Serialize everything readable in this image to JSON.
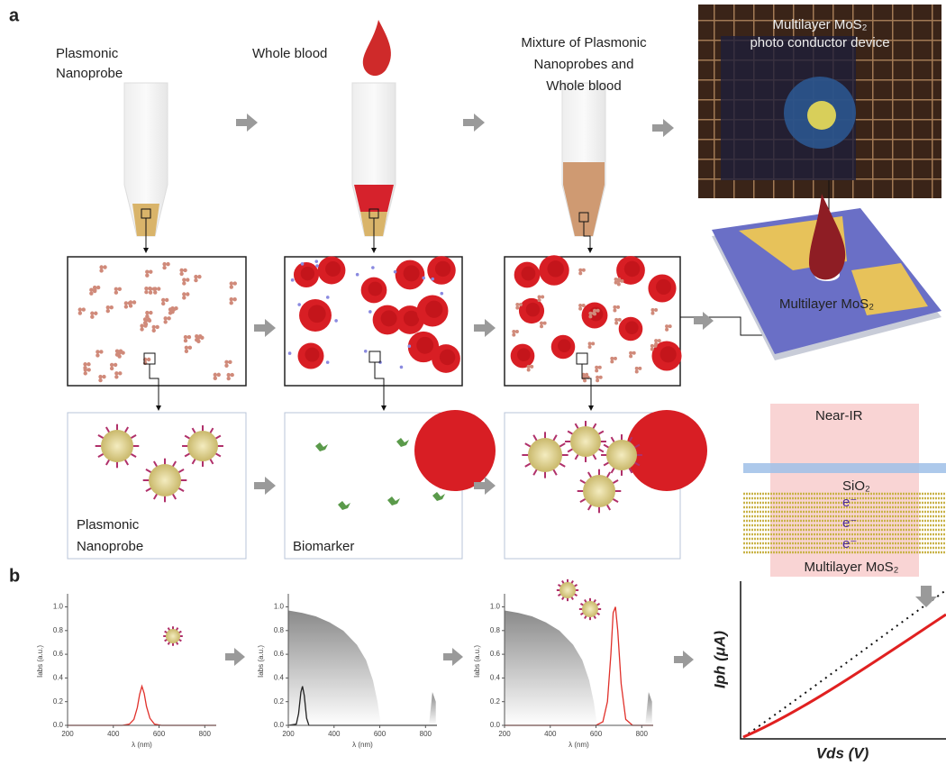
{
  "figure": {
    "panel_a": {
      "label": "a",
      "steps": [
        {
          "lines": [
            "Plasmonic",
            "Nanoprobe"
          ]
        },
        {
          "lines": [
            "Whole blood"
          ]
        },
        {
          "lines": [
            "Mixture of Plasmonic",
            "Nanoprobes and",
            "Whole blood"
          ]
        }
      ],
      "photo": {
        "lines": [
          "Multilayer MoS₂",
          "photo conductor device"
        ]
      },
      "device_label": "Multilayer MoS₂",
      "zoom_labels": [
        {
          "lines": [
            "Plasmonic",
            "Nanoprobe"
          ]
        },
        {
          "lines": [
            "Biomarker"
          ]
        }
      ],
      "stack": {
        "light": "Near-IR",
        "oxide": "SiO₂",
        "electrons": [
          "e⁻",
          "e⁻",
          "e⁻"
        ],
        "channel": "Multilayer MoS₂"
      }
    },
    "panel_b": {
      "label": "b",
      "iv": {
        "ylabel": "Iph (μA)",
        "xlabel": "Vds (V)"
      }
    }
  },
  "chart_data": [
    {
      "type": "line",
      "ylabel": "Iabs (a.u.)",
      "xlabel": "λ (nm)",
      "xlim": [
        200,
        850
      ],
      "ylim": [
        0,
        1.08
      ],
      "xticks": [
        200,
        400,
        600,
        800
      ],
      "yticks": [
        {
          "value": 0,
          "label": "0.0"
        },
        0.2,
        0.4,
        0.6,
        0.8,
        {
          "value": 1,
          "label": "1.0"
        }
      ],
      "series": [
        {
          "color": "#e0302a",
          "x": [
            200,
            440,
            470,
            490,
            505,
            515,
            525,
            535,
            545,
            560,
            580,
            610,
            850
          ],
          "values": [
            0,
            0,
            0.01,
            0.05,
            0.15,
            0.26,
            0.33,
            0.27,
            0.16,
            0.06,
            0.01,
            0,
            0
          ]
        }
      ]
    },
    {
      "type": "line",
      "ylabel": "Iabs (a.u.)",
      "xlabel": "λ (nm)",
      "xlim": [
        200,
        850
      ],
      "ylim": [
        0,
        1.08
      ],
      "xticks": [
        200,
        400,
        600,
        800
      ],
      "yticks": [
        {
          "value": 0,
          "label": "0.0"
        },
        0.2,
        0.4,
        0.6,
        0.8,
        {
          "value": 1,
          "label": "1.0"
        }
      ],
      "series": [
        {
          "color": "#8a8a8a",
          "area": true,
          "x": [
            200,
            260,
            320,
            380,
            440,
            500,
            540,
            570,
            590,
            605,
            700,
            815,
            830,
            845
          ],
          "values": [
            0.97,
            0.95,
            0.92,
            0.87,
            0.8,
            0.68,
            0.55,
            0.38,
            0.2,
            0,
            null,
            0,
            0.28,
            0.2
          ]
        },
        {
          "color": "#222222",
          "x": [
            200,
            235,
            245,
            255,
            262,
            270,
            280,
            290,
            850
          ],
          "values": [
            0,
            0.01,
            0.1,
            0.28,
            0.33,
            0.25,
            0.06,
            0,
            0
          ]
        }
      ]
    },
    {
      "type": "line",
      "ylabel": "Iabs (a.u.)",
      "xlabel": "λ (nm)",
      "xlim": [
        200,
        850
      ],
      "ylim": [
        0,
        1.08
      ],
      "xticks": [
        200,
        400,
        600,
        800
      ],
      "yticks": [
        {
          "value": 0,
          "label": "0.0"
        },
        0.2,
        0.4,
        0.6,
        0.8,
        {
          "value": 1,
          "label": "1.0"
        }
      ],
      "series": [
        {
          "color": "#8a8a8a",
          "area": true,
          "x": [
            200,
            260,
            320,
            380,
            440,
            500,
            540,
            570,
            590,
            605,
            700,
            815,
            830,
            845
          ],
          "values": [
            0.97,
            0.95,
            0.92,
            0.87,
            0.8,
            0.68,
            0.55,
            0.38,
            0.2,
            0,
            null,
            0,
            0.28,
            0.2
          ]
        },
        {
          "color": "#e0302a",
          "x": [
            200,
            600,
            630,
            650,
            665,
            675,
            685,
            695,
            710,
            730,
            760,
            850
          ],
          "values": [
            0,
            0,
            0.03,
            0.2,
            0.6,
            0.95,
            1.0,
            0.8,
            0.35,
            0.05,
            0,
            0
          ]
        }
      ]
    }
  ]
}
